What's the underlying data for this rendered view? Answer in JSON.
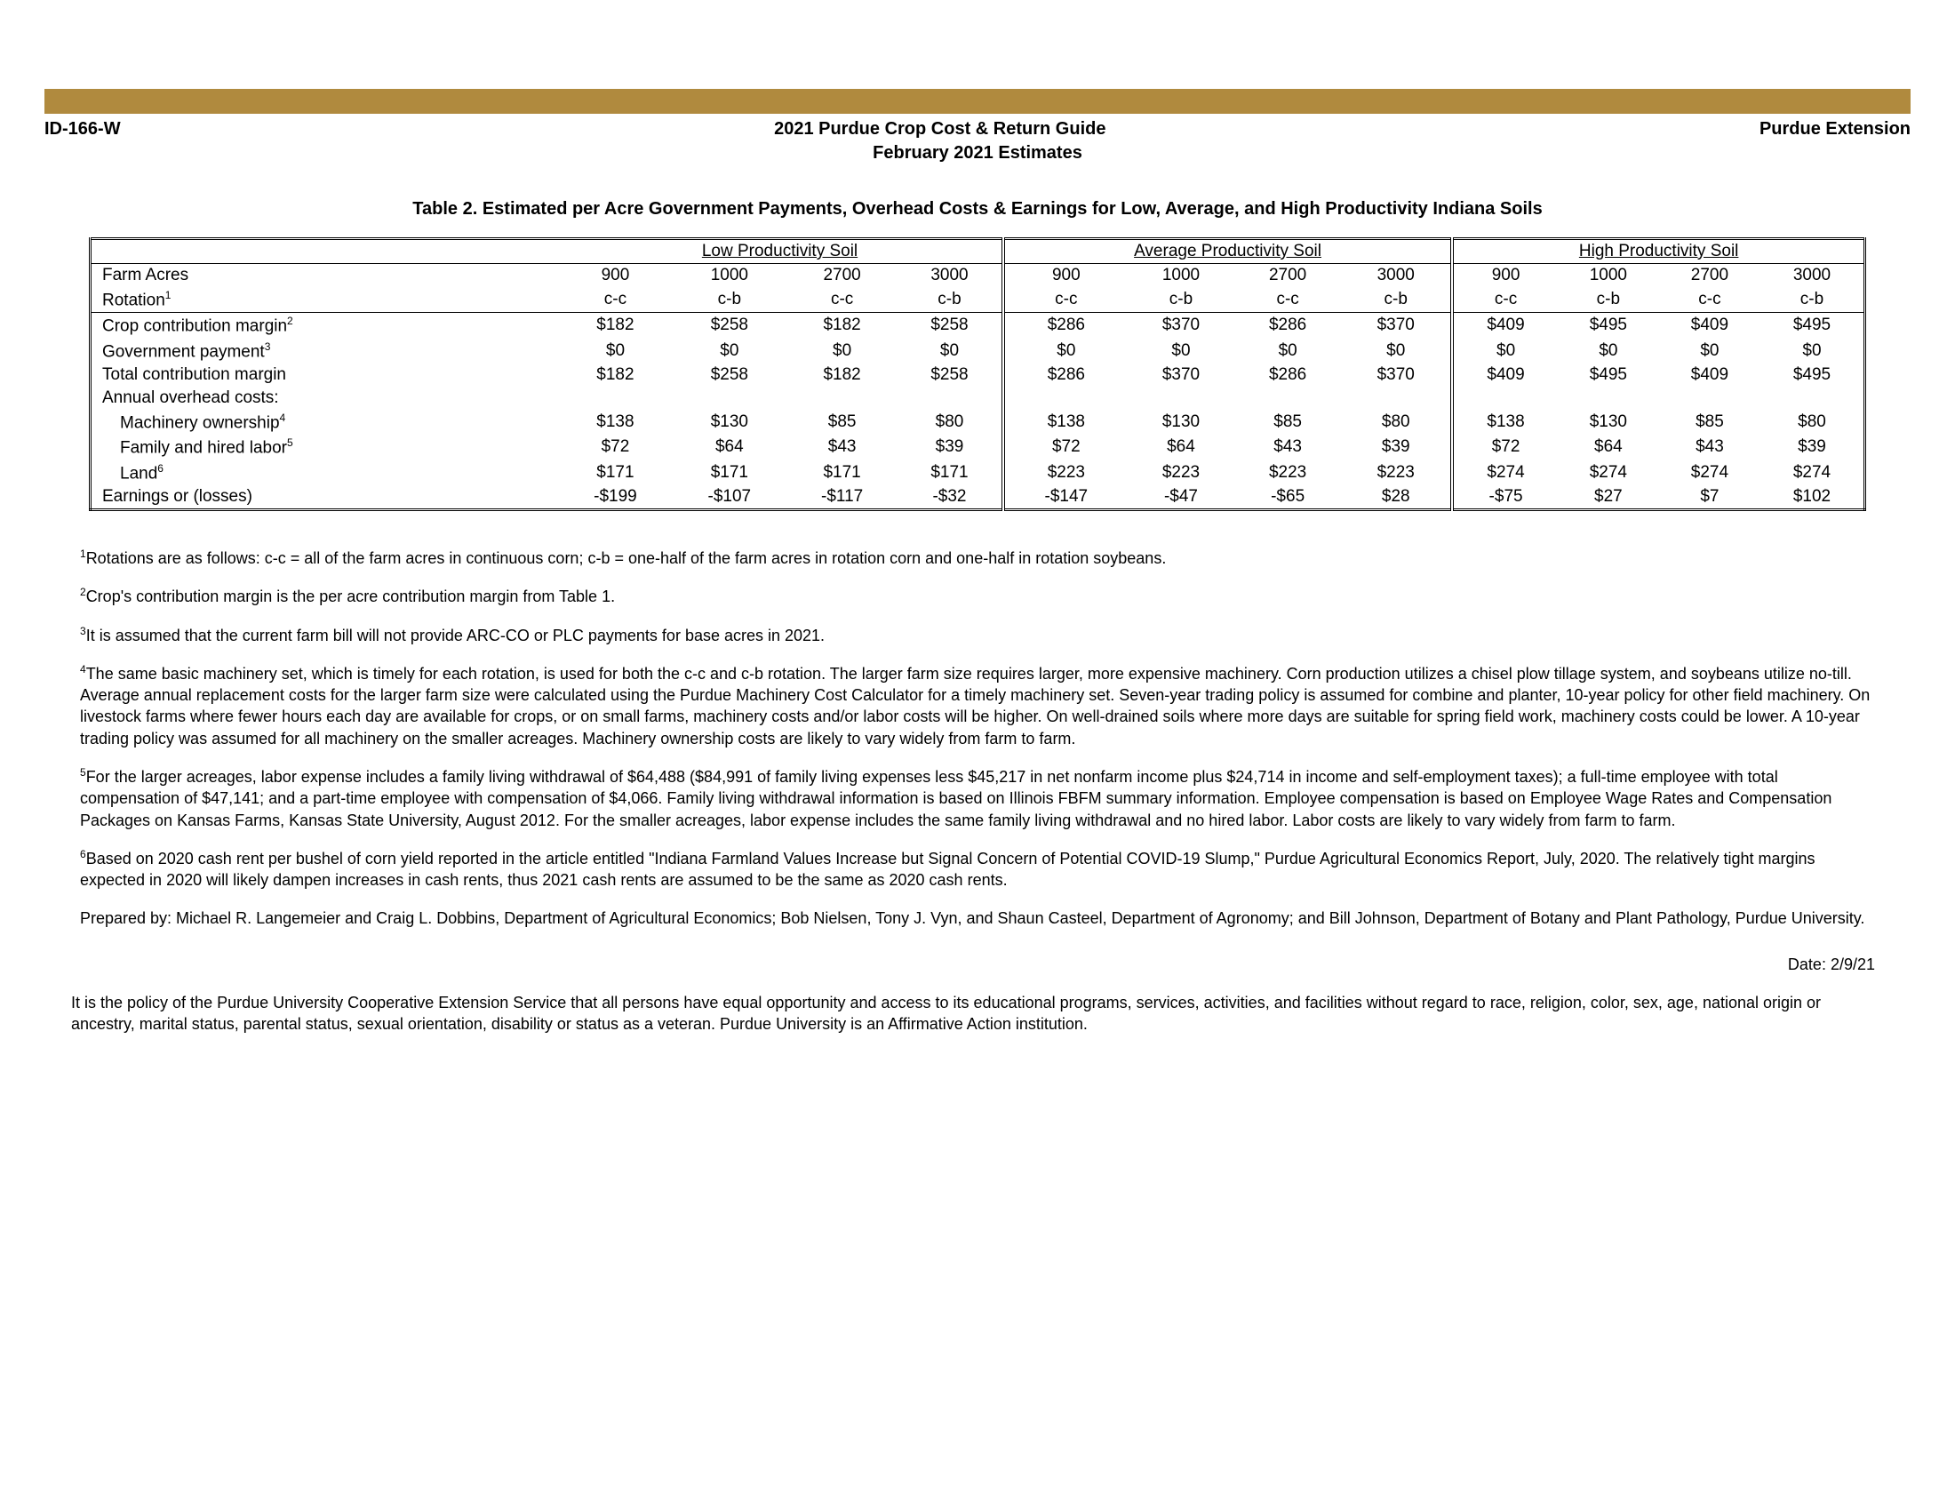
{
  "header": {
    "doc_id": "ID-166-W",
    "title": "2021 Purdue Crop Cost & Return Guide",
    "right": "Purdue Extension",
    "subtitle": "February 2021 Estimates"
  },
  "table": {
    "title": "Table 2. Estimated per Acre Government Payments, Overhead Costs & Earnings for Low, Average, and High Productivity Indiana Soils",
    "groups": [
      "Low Productivity Soil",
      "Average Productivity Soil",
      "High Productivity Soil"
    ],
    "acres_label": "Farm Acres",
    "rotation_label": "Rotation",
    "rotation_sup": "1",
    "acres": [
      "900",
      "1000",
      "2700",
      "3000",
      "900",
      "1000",
      "2700",
      "3000",
      "900",
      "1000",
      "2700",
      "3000"
    ],
    "rotations": [
      "c-c",
      "c-b",
      "c-c",
      "c-b",
      "c-c",
      "c-b",
      "c-c",
      "c-b",
      "c-c",
      "c-b",
      "c-c",
      "c-b"
    ],
    "rows": [
      {
        "label": "Crop contribution margin",
        "sup": "2",
        "indent": false,
        "vals": [
          "$182",
          "$258",
          "$182",
          "$258",
          "$286",
          "$370",
          "$286",
          "$370",
          "$409",
          "$495",
          "$409",
          "$495"
        ]
      },
      {
        "label": "Government payment",
        "sup": "3",
        "indent": false,
        "vals": [
          "$0",
          "$0",
          "$0",
          "$0",
          "$0",
          "$0",
          "$0",
          "$0",
          "$0",
          "$0",
          "$0",
          "$0"
        ]
      },
      {
        "label": "Total contribution margin",
        "sup": "",
        "indent": false,
        "vals": [
          "$182",
          "$258",
          "$182",
          "$258",
          "$286",
          "$370",
          "$286",
          "$370",
          "$409",
          "$495",
          "$409",
          "$495"
        ]
      },
      {
        "label": "Annual overhead costs:",
        "sup": "",
        "indent": false,
        "vals": [
          "",
          "",
          "",
          "",
          "",
          "",
          "",
          "",
          "",
          "",
          "",
          ""
        ]
      },
      {
        "label": "Machinery ownership",
        "sup": "4",
        "indent": true,
        "vals": [
          "$138",
          "$130",
          "$85",
          "$80",
          "$138",
          "$130",
          "$85",
          "$80",
          "$138",
          "$130",
          "$85",
          "$80"
        ]
      },
      {
        "label": "Family and hired labor",
        "sup": "5",
        "indent": true,
        "vals": [
          "$72",
          "$64",
          "$43",
          "$39",
          "$72",
          "$64",
          "$43",
          "$39",
          "$72",
          "$64",
          "$43",
          "$39"
        ]
      },
      {
        "label": "Land",
        "sup": "6",
        "indent": true,
        "vals": [
          "$171",
          "$171",
          "$171",
          "$171",
          "$223",
          "$223",
          "$223",
          "$223",
          "$274",
          "$274",
          "$274",
          "$274"
        ]
      },
      {
        "label": "Earnings or (losses)",
        "sup": "",
        "indent": false,
        "vals": [
          "-$199",
          "-$107",
          "-$117",
          "-$32",
          "-$147",
          "-$47",
          "-$65",
          "$28",
          "-$75",
          "$27",
          "$7",
          "$102"
        ]
      }
    ]
  },
  "footnotes": {
    "fn1": "Rotations are as follows: c-c = all of the farm acres in continuous corn; c-b = one-half of the farm acres in rotation corn and one-half in rotation soybeans.",
    "fn2": "Crop's contribution margin is the per acre contribution margin from Table 1.",
    "fn3": "It is assumed that the current farm bill will not provide ARC-CO or PLC payments for base acres in 2021.",
    "fn4": "The same basic machinery set, which is timely for each rotation, is used for both the c-c and c-b rotation. The larger farm size requires larger, more expensive machinery. Corn production utilizes a chisel plow tillage system, and soybeans utilize no-till. Average annual replacement costs for the larger farm size were calculated using the Purdue Machinery Cost Calculator for a timely machinery set. Seven-year trading policy is assumed for combine and planter, 10-year policy for other field machinery. On livestock farms where fewer hours each day are available for crops, or on small farms, machinery costs and/or labor costs will be higher. On well-drained soils where more days are suitable for spring field work, machinery costs could be lower.  A 10-year trading policy was assumed for all machinery on the smaller acreages. Machinery ownership costs are likely to vary widely from farm to farm.",
    "fn5": "For the larger acreages, labor expense includes a family living withdrawal of $64,488 ($84,991 of family living expenses less $45,217 in net nonfarm income plus $24,714 in income and self-employment taxes); a full-time employee with total compensation of $47,141; and a part-time employee with compensation of $4,066.  Family living withdrawal information is based on Illinois FBFM summary information.  Employee compensation is based on Employee Wage Rates and Compensation Packages on Kansas Farms, Kansas State University, August 2012.  For the smaller acreages, labor expense includes the same family living withdrawal and no hired labor.  Labor costs are likely to vary widely from farm to farm.",
    "fn6": "Based on 2020 cash rent per bushel of corn yield reported in the article entitled \"Indiana Farmland Values Increase but Signal Concern of Potential COVID-19 Slump,\" Purdue Agricultural Economics Report, July, 2020.  The relatively tight margins expected in 2020 will likely dampen increases in cash rents, thus 2021 cash rents are assumed to be the same as 2020 cash rents.",
    "prepared": "Prepared by: Michael R. Langemeier and Craig L. Dobbins, Department of Agricultural Economics; Bob Nielsen, Tony J. Vyn, and Shaun Casteel, Department of Agronomy; and Bill Johnson, Department of Botany and Plant Pathology, Purdue University.",
    "date": "Date: 2/9/21",
    "policy": "It is the policy of the Purdue University Cooperative Extension Service that all persons have equal opportunity and access to its educational programs, services, activities, and facilities without regard to race, religion, color, sex, age, national origin or ancestry, marital status, parental status, sexual orientation, disability or status as a veteran. Purdue University is an Affirmative Action institution."
  },
  "style": {
    "gold": "#b08a3e"
  }
}
